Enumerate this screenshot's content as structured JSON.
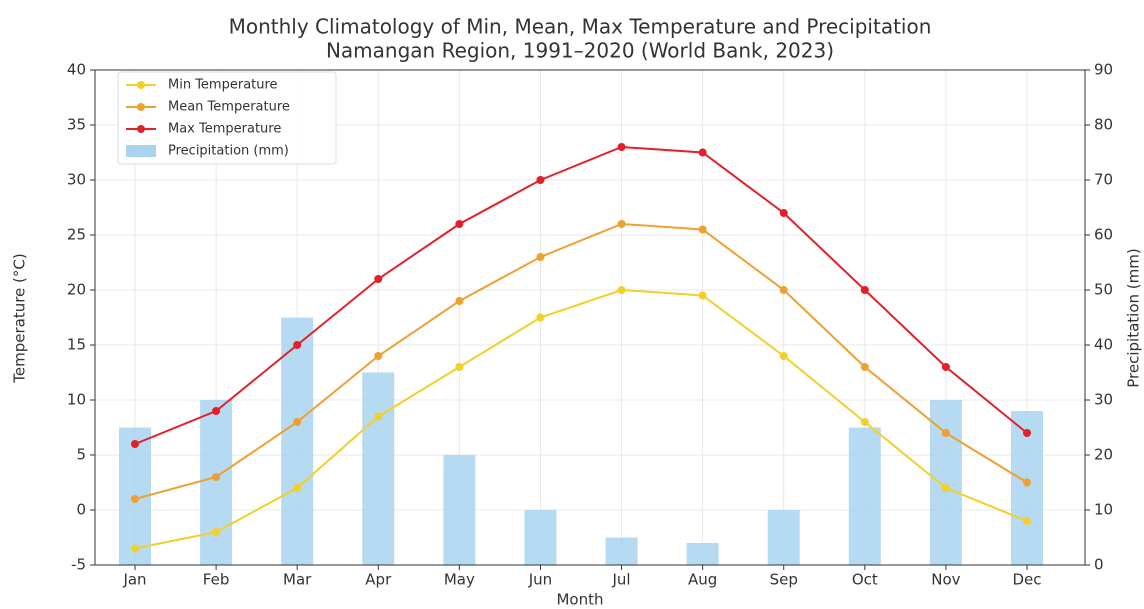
{
  "chart_data": {
    "type": "line",
    "title": "Monthly Climatology of Min, Mean, Max Temperature and Precipitation",
    "subtitle": "Namangan Region, 1991–2020 (World Bank, 2023)",
    "x_label": "Month",
    "y_label": "Temperature (°C)",
    "y2_label": "Precipitation (mm)",
    "categories": [
      "Jan",
      "Feb",
      "Mar",
      "Apr",
      "May",
      "Jun",
      "Jul",
      "Aug",
      "Sep",
      "Oct",
      "Nov",
      "Dec"
    ],
    "series": [
      {
        "name": "Min Temperature",
        "type": "line",
        "color": "#f2cf2a",
        "values": [
          -3.5,
          -2,
          2,
          8.5,
          13,
          17.5,
          20,
          19.5,
          14,
          8,
          2,
          -1
        ]
      },
      {
        "name": "Mean Temperature",
        "type": "line",
        "color": "#eea032",
        "values": [
          1,
          3,
          8,
          14,
          19,
          23,
          26,
          25.5,
          20,
          13,
          7,
          2.5
        ]
      },
      {
        "name": "Max Temperature",
        "type": "line",
        "color": "#e3202a",
        "values": [
          6,
          9,
          15,
          21,
          26,
          30,
          33,
          32.5,
          27,
          20,
          13,
          7
        ]
      },
      {
        "name": "Precipitation (mm)",
        "type": "bar",
        "axis": "y2",
        "color": "#a9d3ee",
        "values": [
          25,
          30,
          45,
          35,
          20,
          10,
          5,
          4,
          10,
          25,
          30,
          28
        ]
      }
    ],
    "ylim": [
      -5,
      40
    ],
    "yticks": [
      -5,
      0,
      5,
      10,
      15,
      20,
      25,
      30,
      35,
      40
    ],
    "y2lim": [
      0,
      90
    ],
    "y2ticks": [
      0,
      10,
      20,
      30,
      40,
      50,
      60,
      70,
      80,
      90
    ],
    "grid": true,
    "legend": "upper left"
  }
}
